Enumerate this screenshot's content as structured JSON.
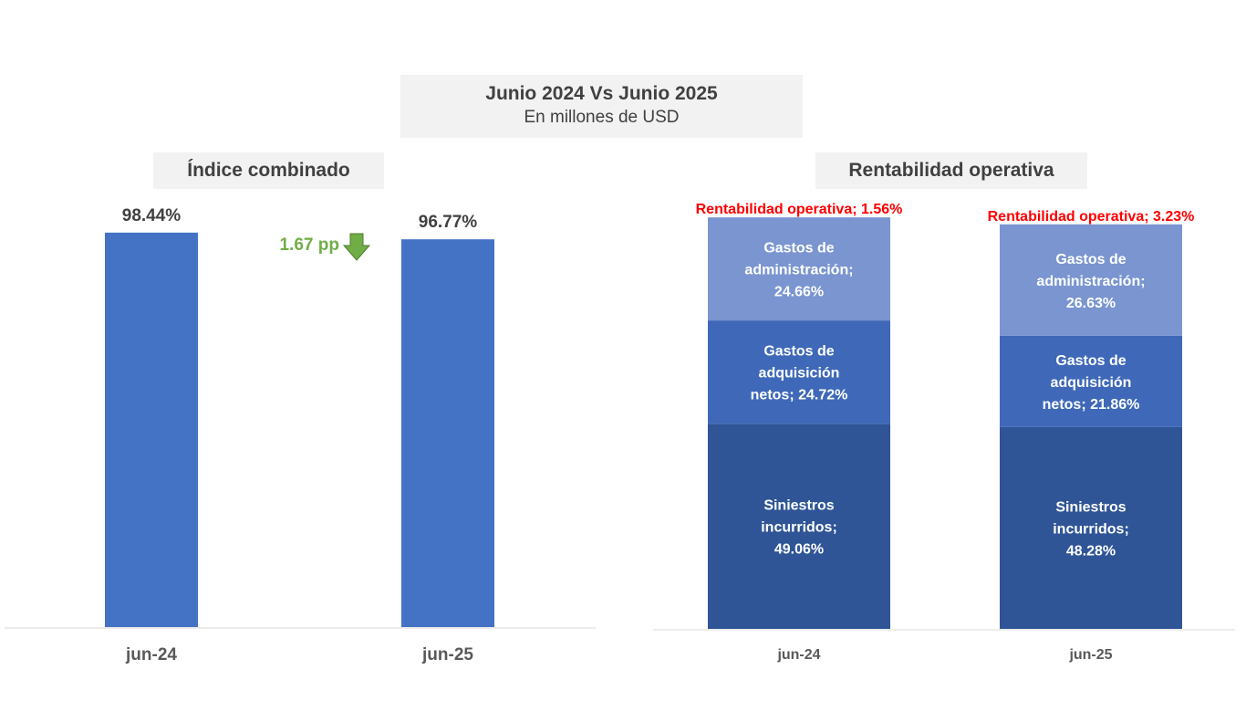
{
  "header": {
    "title": "Junio 2024 Vs Junio 2025",
    "subtitle": "En millones de USD"
  },
  "colors": {
    "bar": "#4472c4",
    "siniestros": "#2f5597",
    "adquisicion": "#3f69b8",
    "administracion": "#7a95d0",
    "rentabilidad_label": "#ff0000",
    "delta": "#70ad47"
  },
  "chart_data": [
    {
      "type": "bar",
      "title": "Índice combinado",
      "categories": [
        "jun-24",
        "jun-25"
      ],
      "values": [
        98.44,
        96.77
      ],
      "value_labels": [
        "98.44%",
        "96.77%"
      ],
      "ylim": [
        0,
        100
      ],
      "grid": false,
      "annotation": {
        "text": "1.67 pp",
        "direction": "down",
        "icon": "down-arrow-icon"
      }
    },
    {
      "type": "bar",
      "stacked": true,
      "title": "Rentabilidad operativa",
      "categories": [
        "jun-24",
        "jun-25"
      ],
      "ylim": [
        0,
        100
      ],
      "grid": false,
      "series": [
        {
          "name": "Siniestros incurridos",
          "values": [
            49.06,
            48.28
          ],
          "labels": [
            [
              "Siniestros",
              "incurridos;",
              "49.06%"
            ],
            [
              "Siniestros",
              "incurridos;",
              "48.28%"
            ]
          ]
        },
        {
          "name": "Gastos de adquisición netos",
          "values": [
            24.72,
            21.86
          ],
          "labels": [
            [
              "Gastos de",
              "adquisición",
              "netos; 24.72%"
            ],
            [
              "Gastos de",
              "adquisición",
              "netos; 21.86%"
            ]
          ]
        },
        {
          "name": "Gastos de administración",
          "values": [
            24.66,
            26.63
          ],
          "labels": [
            [
              "Gastos de",
              "administración;",
              "24.66%"
            ],
            [
              "Gastos de",
              "administración;",
              "26.63%"
            ]
          ]
        },
        {
          "name": "Rentabilidad operativa",
          "values": [
            1.56,
            3.23
          ],
          "labels": [
            [
              "Rentabilidad operativa; 1.56%"
            ],
            [
              "Rentabilidad operativa; 3.23%"
            ]
          ]
        }
      ]
    }
  ]
}
